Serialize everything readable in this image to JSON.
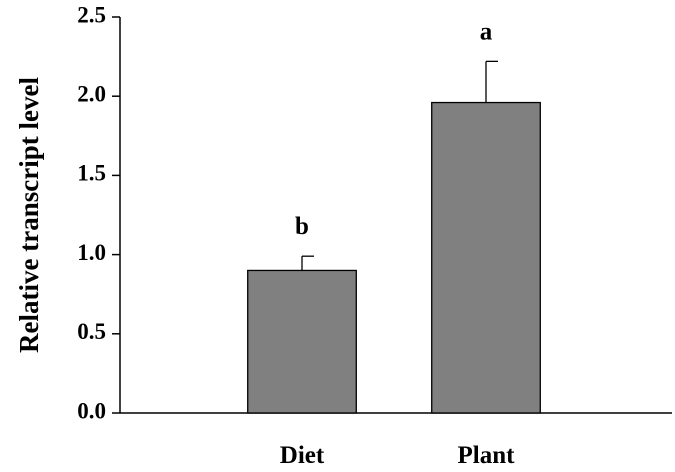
{
  "chart_data": {
    "type": "bar",
    "y_label": "Relative transcript level",
    "categories": [
      "Diet",
      "Plant"
    ],
    "values": [
      0.9,
      1.96
    ],
    "errors": [
      0.09,
      0.26
    ],
    "letters": [
      "b",
      "a"
    ],
    "color": "#808080",
    "ylim": [
      0,
      2.5
    ],
    "yticks": [
      {
        "value": 0,
        "label": "0.0"
      },
      {
        "value": 0.5,
        "label": "0.5"
      },
      {
        "value": 1,
        "label": "1.0"
      },
      {
        "value": 1.5,
        "label": "1.5"
      },
      {
        "value": 2,
        "label": "2.0"
      },
      {
        "value": 2.5,
        "label": "2.5"
      }
    ]
  }
}
